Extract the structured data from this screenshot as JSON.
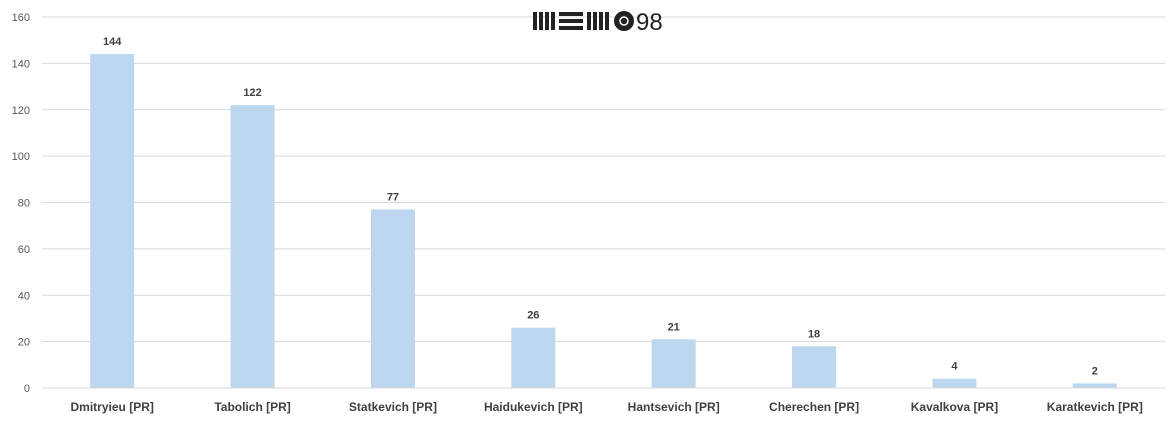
{
  "chart_data": {
    "type": "bar",
    "categories": [
      "Dmitryieu [PR]",
      "Tabolich [PR]",
      "Statkevich [PR]",
      "Haidukevich [PR]",
      "Hantsevich [PR]",
      "Cherechen [PR]",
      "Kavalkova [PR]",
      "Karatkevich [PR]"
    ],
    "values": [
      144,
      122,
      77,
      26,
      21,
      18,
      4,
      2
    ],
    "ylim": [
      0,
      160
    ],
    "yticks": [
      0,
      20,
      40,
      60,
      80,
      100,
      120,
      140,
      160
    ],
    "grid": true,
    "bar_color": "#bdd7ee",
    "gridline_color": "#d9d9d9"
  },
  "logo": {
    "text": "MEMO98",
    "suffix": "98"
  }
}
